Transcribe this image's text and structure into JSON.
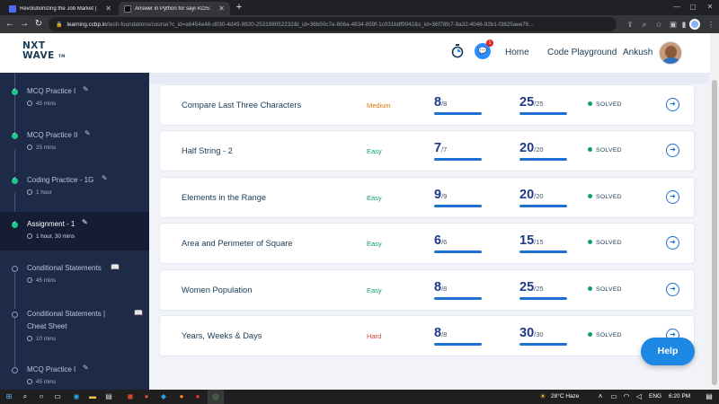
{
  "browser": {
    "tabs": [
      {
        "label": "Revolutionizing the Job Market |",
        "favicon_color": "#4a6cf7",
        "active": false
      },
      {
        "label": "Answer in Python for sayi #225:",
        "favicon_color": "#111111",
        "active": true
      }
    ],
    "new_tab": "+",
    "url_host": "learning.ccbp.in",
    "url_path": "/tech-foundations/course?c_id=a6454e48-d030-4d49-8920-253198052232&t_id=36b50c7e-806a-4834-859f-1c031bdf9942&s_id=36f78fc7-9a32-4046-92b1-f3825aee76..."
  },
  "header": {
    "logo_line1": "NXT",
    "logo_line2": "WAVE",
    "logo_tm": "TM",
    "chat_badge_count": "1",
    "nav_home": "Home",
    "nav_playground": "Code Playground",
    "user_name": "Ankush"
  },
  "sidebar": {
    "items": [
      {
        "title": "MCQ Practice I",
        "time": "45 mins",
        "status": "done",
        "icon": "edit-icon"
      },
      {
        "title": "MCQ Practice II",
        "time": "25 mins",
        "status": "done",
        "icon": "edit-icon"
      },
      {
        "title": "Coding Practice - 1G",
        "time": "1 hour",
        "status": "done",
        "icon": "edit-icon"
      },
      {
        "title": "Assignment - 1",
        "time": "1 hour, 30 mins",
        "status": "done",
        "icon": "edit-icon",
        "selected": true
      },
      {
        "title": "Conditional Statements",
        "time": "45 mins",
        "status": "todo",
        "icon": "book-icon"
      },
      {
        "title": "Conditional Statements |",
        "title_line2": "Cheat Sheet",
        "time": "10 mins",
        "status": "todo",
        "icon": "book-icon"
      },
      {
        "title": "MCQ Practice I",
        "time": "45 mins",
        "status": "todo",
        "icon": "edit-icon"
      }
    ]
  },
  "questions": [
    {
      "name": "Compare Last Three Characters",
      "level": "Medium",
      "level_class": "medium",
      "score": "8",
      "score_max": "/8",
      "points": "25",
      "points_max": "/25",
      "status": "SOLVED"
    },
    {
      "name": "Half String - 2",
      "level": "Easy",
      "level_class": "easy",
      "score": "7",
      "score_max": "/7",
      "points": "20",
      "points_max": "/20",
      "status": "SOLVED"
    },
    {
      "name": "Elements in the Range",
      "level": "Easy",
      "level_class": "easy",
      "score": "9",
      "score_max": "/9",
      "points": "20",
      "points_max": "/20",
      "status": "SOLVED"
    },
    {
      "name": "Area and Perimeter of Square",
      "level": "Easy",
      "level_class": "easy",
      "score": "6",
      "score_max": "/6",
      "points": "15",
      "points_max": "/15",
      "status": "SOLVED"
    },
    {
      "name": "Women Population",
      "level": "Easy",
      "level_class": "easy",
      "score": "8",
      "score_max": "/8",
      "points": "25",
      "points_max": "/25",
      "status": "SOLVED"
    },
    {
      "name": "Years, Weeks & Days",
      "level": "Hard",
      "level_class": "hard",
      "score": "8",
      "score_max": "/8",
      "points": "30",
      "points_max": "/30",
      "status": "SOLVED"
    }
  ],
  "help_label": "Help",
  "taskbar": {
    "weather": "28°C  Haze",
    "language": "ENG",
    "time": "6:20 PM"
  },
  "colors": {
    "sidebar_bg": "#1e2b48",
    "accent": "#1d6fd1",
    "easy": "#0e9f6e",
    "medium": "#d97706",
    "hard": "#d44a1f"
  }
}
